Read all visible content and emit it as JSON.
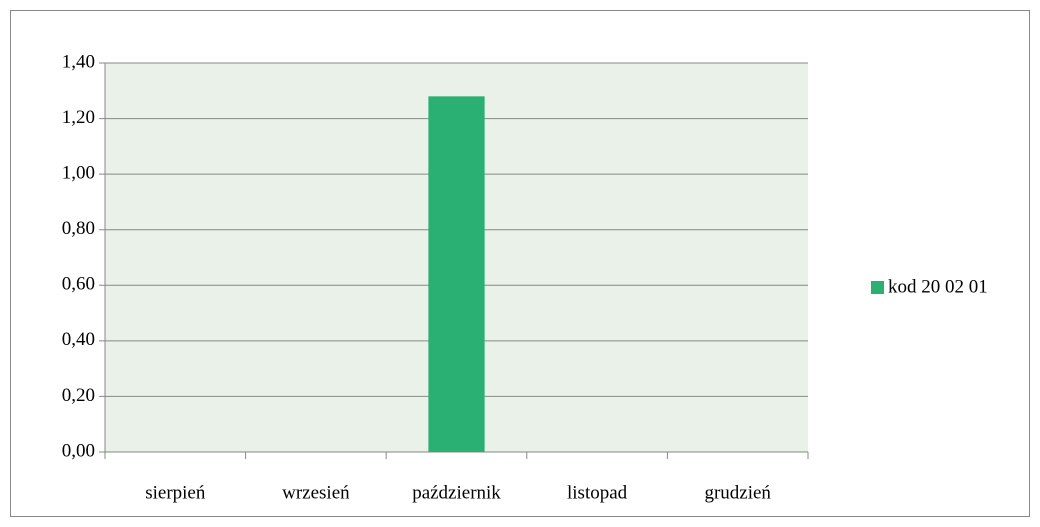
{
  "chart_data": {
    "type": "bar",
    "categories": [
      "sierpień",
      "wrzesień",
      "październik",
      "listopad",
      "grudzień"
    ],
    "series": [
      {
        "name": "kod 20 02 01",
        "color": "#2bb074",
        "values": [
          0,
          0,
          1.28,
          0,
          0
        ]
      }
    ],
    "ylim": [
      0,
      1.4
    ],
    "yticks": [
      {
        "value": 0,
        "label": "0,00"
      },
      {
        "value": 0.2,
        "label": "0,20"
      },
      {
        "value": 0.4,
        "label": "0,40"
      },
      {
        "value": 0.6,
        "label": "0,60"
      },
      {
        "value": 0.8,
        "label": "0,80"
      },
      {
        "value": 1.0,
        "label": "1,00"
      },
      {
        "value": 1.2,
        "label": "1,20"
      },
      {
        "value": 1.4,
        "label": "1,40"
      }
    ],
    "grid": true,
    "legend": "right"
  }
}
